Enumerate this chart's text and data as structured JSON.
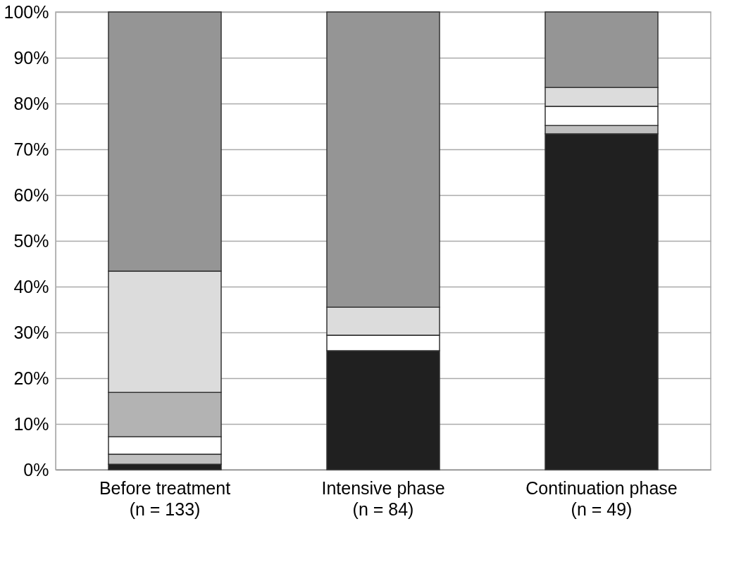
{
  "chart_data": {
    "type": "bar",
    "stacked": true,
    "categories": [
      "Before treatment (n = 133)",
      "Intensive phase (n = 84)",
      "Continuation phase (n = 49)"
    ],
    "series": [
      {
        "color": "#202020",
        "values": [
          1.2,
          26.0,
          73.4
        ]
      },
      {
        "color": "#c0c0c0",
        "values": [
          2.2,
          0,
          1.8
        ]
      },
      {
        "color": "#ffffff",
        "values": [
          3.8,
          3.4,
          4.2
        ]
      },
      {
        "color": "#b3b3b3",
        "values": [
          9.7,
          0,
          0
        ]
      },
      {
        "color": "#dcdcdc",
        "values": [
          26.5,
          6.1,
          4.1
        ]
      },
      {
        "color": "#959595",
        "values": [
          56.6,
          64.5,
          16.5
        ]
      }
    ],
    "ylim": [
      0,
      100
    ],
    "yticks": [
      {
        "value": 0,
        "label": "0%"
      },
      {
        "value": 10,
        "label": "10%"
      },
      {
        "value": 20,
        "label": "20%"
      },
      {
        "value": 30,
        "label": "30%"
      },
      {
        "value": 40,
        "label": "40%"
      },
      {
        "value": 50,
        "label": "50%"
      },
      {
        "value": 60,
        "label": "60%"
      },
      {
        "value": 70,
        "label": "70%"
      },
      {
        "value": 80,
        "label": "80%"
      },
      {
        "value": 90,
        "label": "90%"
      },
      {
        "value": 100,
        "label": "100%"
      }
    ],
    "grid": "y",
    "legend": false
  }
}
